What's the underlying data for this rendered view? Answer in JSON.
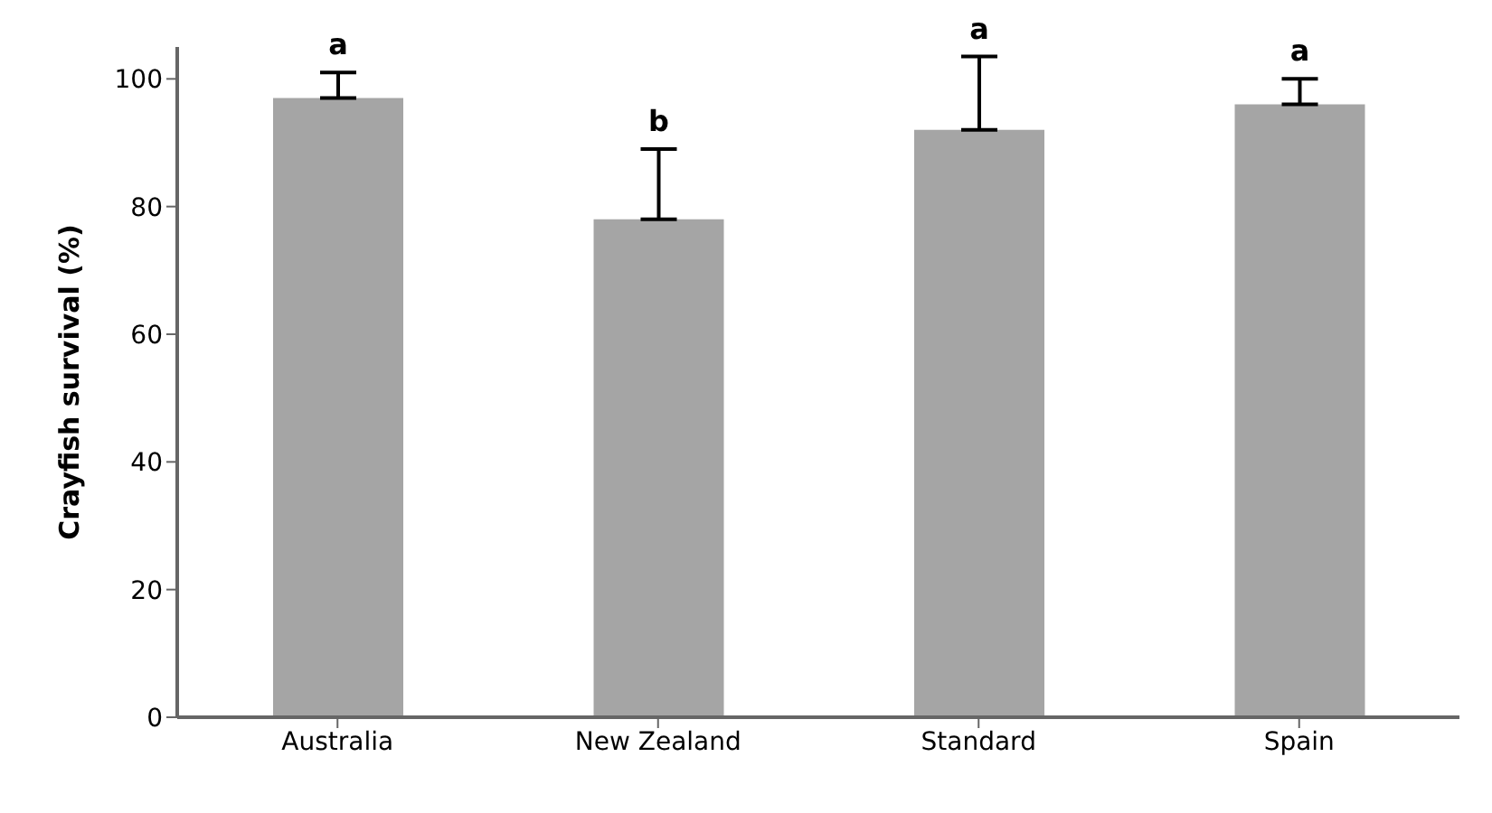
{
  "chart_data": {
    "type": "bar",
    "ylabel": "Crayfish survival (%)",
    "categories": [
      "Australia",
      "New Zealand",
      "Standard",
      "Spain"
    ],
    "values": [
      97,
      78,
      92,
      96
    ],
    "color": "#a5a5a5",
    "errors": [
      [
        97,
        101
      ],
      [
        78,
        89
      ],
      [
        92,
        103.5
      ],
      [
        96,
        100
      ]
    ],
    "ylim": [
      0,
      105
    ],
    "yticks": [
      0,
      20,
      40,
      60,
      80,
      100
    ],
    "grid": false,
    "legend": false,
    "annotations": [
      "a",
      "b",
      "a",
      "a"
    ]
  }
}
